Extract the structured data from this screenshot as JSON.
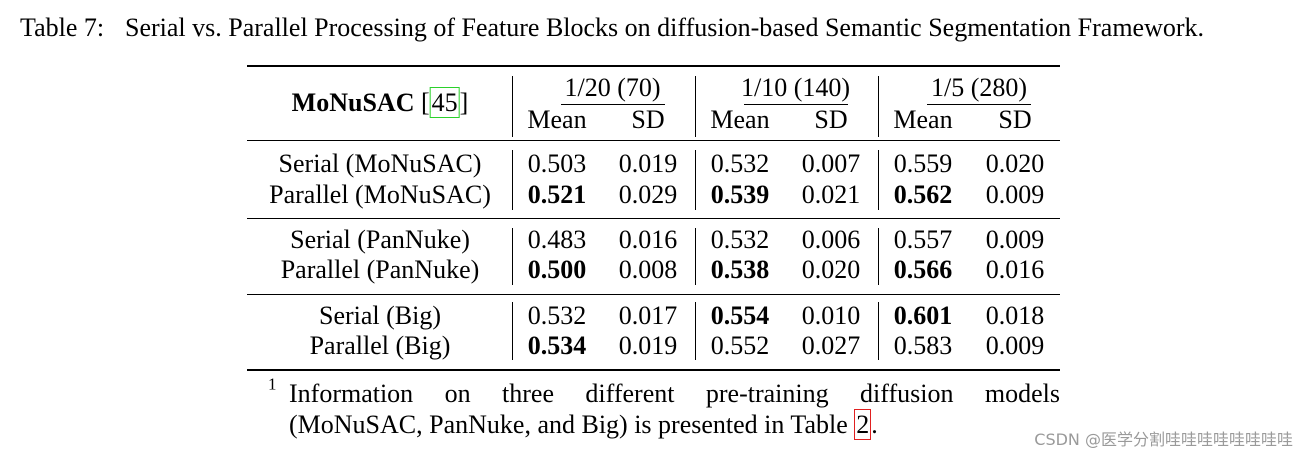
{
  "caption": {
    "label": "Table 7:",
    "text": "Serial vs. Parallel Processing of Feature Blocks on diffusion-based Semantic Segmentation Framework."
  },
  "table": {
    "corner": {
      "name": "MoNuSAC",
      "cite": [
        "[",
        "45",
        "]"
      ]
    },
    "groups": [
      {
        "label": "1/20 (70)",
        "columns": [
          "Mean",
          "SD"
        ]
      },
      {
        "label": "1/10 (140)",
        "columns": [
          "Mean",
          "SD"
        ]
      },
      {
        "label": "1/5 (280)",
        "columns": [
          "Mean",
          "SD"
        ]
      }
    ],
    "sections": [
      {
        "rows": [
          {
            "label": "Serial (MoNuSAC)",
            "cells": [
              "0.503",
              "0.019",
              "0.532",
              "0.007",
              "0.559",
              "0.020"
            ],
            "bold": []
          },
          {
            "label": "Parallel (MoNuSAC)",
            "cells": [
              "0.521",
              "0.029",
              "0.539",
              "0.021",
              "0.562",
              "0.009"
            ],
            "bold": [
              0,
              2,
              4
            ]
          }
        ]
      },
      {
        "rows": [
          {
            "label": "Serial (PanNuke)",
            "cells": [
              "0.483",
              "0.016",
              "0.532",
              "0.006",
              "0.557",
              "0.009"
            ],
            "bold": []
          },
          {
            "label": "Parallel (PanNuke)",
            "cells": [
              "0.500",
              "0.008",
              "0.538",
              "0.020",
              "0.566",
              "0.016"
            ],
            "bold": [
              0,
              2,
              4
            ]
          }
        ]
      },
      {
        "rows": [
          {
            "label": "Serial (Big)",
            "cells": [
              "0.532",
              "0.017",
              "0.554",
              "0.010",
              "0.601",
              "0.018"
            ],
            "bold": [
              2,
              4
            ]
          },
          {
            "label": "Parallel (Big)",
            "cells": [
              "0.534",
              "0.019",
              "0.552",
              "0.027",
              "0.583",
              "0.009"
            ],
            "bold": [
              0
            ]
          }
        ]
      }
    ]
  },
  "footnote": {
    "mark": "1",
    "line1": "Information on three different pre-training diffusion models",
    "line2": [
      "(MoNuSAC, PanNuke, and Big) is presented in Table ",
      "2",
      "."
    ]
  },
  "watermark": "CSDN @医学分割哇哇哇哇哇哇哇哇"
}
